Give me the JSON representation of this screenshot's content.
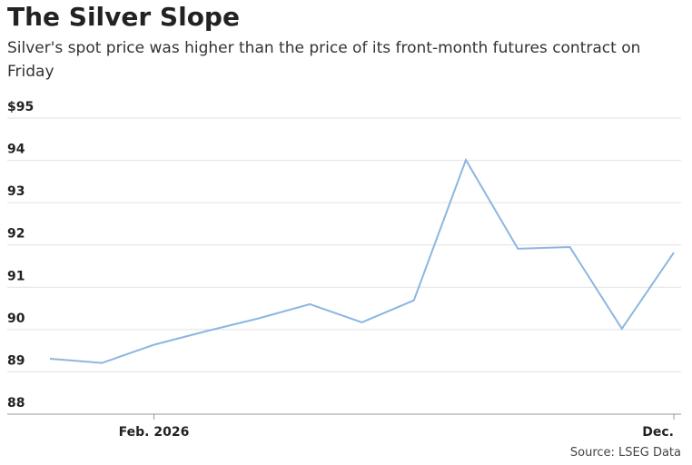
{
  "chart_data": {
    "type": "line",
    "title": "The Silver Slope",
    "subtitle": "Silver's spot price was higher than the price of its front-month futures contract on Friday",
    "source": "Source: LSEG Data",
    "categories": [
      null,
      null,
      "Feb. 2026",
      null,
      null,
      null,
      null,
      null,
      null,
      null,
      null,
      null,
      "Dec."
    ],
    "series": [
      {
        "color": "#8db6e0",
        "values": [
          89.31,
          89.21,
          89.64,
          89.96,
          90.26,
          90.6,
          90.17,
          90.69,
          94.01,
          91.91,
          91.95,
          90.02,
          91.82
        ]
      }
    ],
    "ylim": [
      88,
      95
    ],
    "yticks": [
      88,
      89,
      90,
      91,
      92,
      93,
      94,
      {
        "value": 95,
        "label": "$95"
      }
    ],
    "grid": true
  }
}
